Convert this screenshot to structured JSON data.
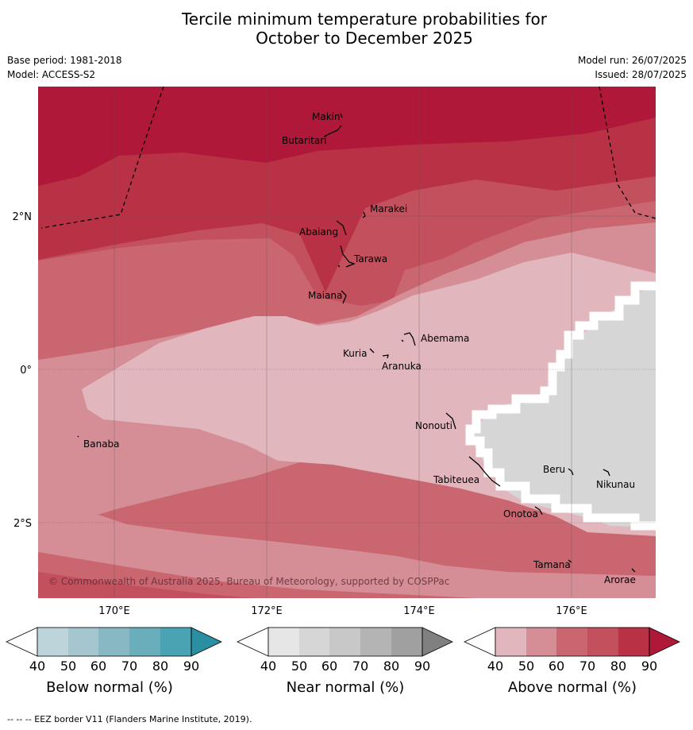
{
  "title_line1": "Tercile minimum temperature probabilities for",
  "title_line2": "October to December 2025",
  "base_period": "Base period: 1981-2018",
  "model": "Model: ACCESS-S2",
  "model_run": "Model run: 26/07/2025",
  "issued": "Issued: 28/07/2025",
  "map": {
    "lon_ticks": [
      "170°E",
      "172°E",
      "174°E",
      "176°E"
    ],
    "lat_ticks": [
      "2°N",
      "0°",
      "2°S"
    ],
    "copyright": "© Commonwealth of Australia 2025, Bureau of Meteorology, supported by COSPPac",
    "islands": [
      "Makin",
      "Butaritari",
      "Marakei",
      "Abaiang",
      "Tarawa",
      "Maiana",
      "Abemama",
      "Kuria",
      "Aranuka",
      "Banaba",
      "Nonouti",
      "Beru",
      "Nikunau",
      "Tabiteuea",
      "Onotoa",
      "Tamana",
      "Arorae"
    ]
  },
  "colors": {
    "above": [
      "#e1b6bd",
      "#d58d96",
      "#c96670",
      "#c2505d",
      "#b93145",
      "#b0183a"
    ],
    "near": [
      "#e6e6e6",
      "#d6d6d6",
      "#c8c8c8",
      "#b4b4b4",
      "#a0a0a0",
      "#808080"
    ],
    "below": [
      "#bdd4db",
      "#a5c5cf",
      "#88b8c4",
      "#6aaebc",
      "#4aa3b3",
      "#2a8fa3"
    ]
  },
  "colorbars": [
    {
      "title": "Below normal (%)",
      "ticks": [
        "40",
        "50",
        "60",
        "70",
        "80",
        "90"
      ]
    },
    {
      "title": "Near normal (%)",
      "ticks": [
        "40",
        "50",
        "60",
        "70",
        "80",
        "90"
      ]
    },
    {
      "title": "Above normal (%)",
      "ticks": [
        "40",
        "50",
        "60",
        "70",
        "80",
        "90"
      ]
    }
  ],
  "footer": "--  --  -- EEZ border V11 (Flanders Marine Institute, 2019)."
}
